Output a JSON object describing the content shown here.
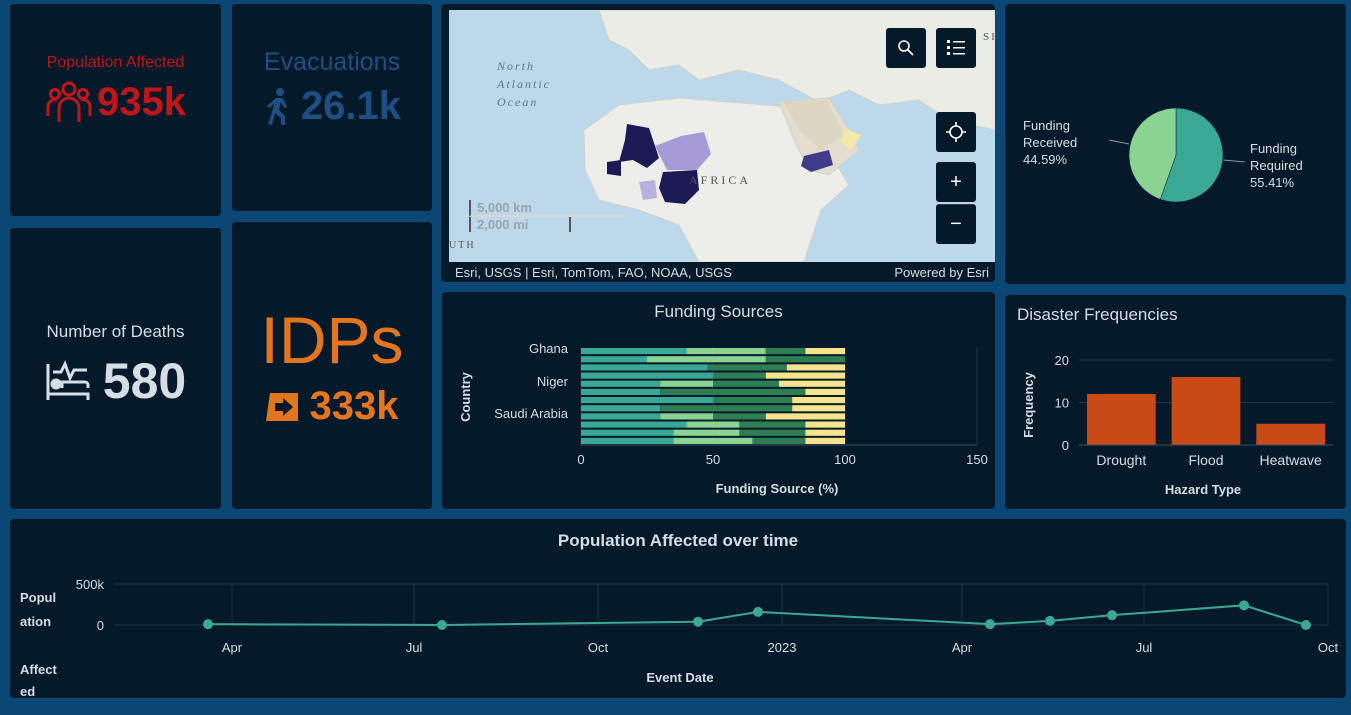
{
  "kpis": {
    "population": {
      "label": "Population Affected",
      "value": "935k",
      "icon": "people-icon",
      "color": "#c0151b"
    },
    "evacuations": {
      "label": "Evacuations",
      "value": "26.1k",
      "icon": "walking-person-icon",
      "color": "#1f4e82"
    },
    "deaths": {
      "label": "Number of Deaths",
      "value": "580",
      "icon": "bed-heartbeat-icon",
      "color": "#d6dde4"
    },
    "idps": {
      "label": "IDPs",
      "value": "333k",
      "icon": "shelter-arrow-icon",
      "color": "#e3761d"
    }
  },
  "map": {
    "labels": {
      "ocean": [
        "North",
        "Atlantic",
        "Ocean"
      ],
      "continent": "AFRICA",
      "south": "UTH",
      "corner": "SI"
    },
    "scale": {
      "km": "5,000 km",
      "mi": "2,000 mi"
    },
    "attribution": "Esri, USGS | Esri, TomTom, FAO, NOAA, USGS",
    "powered_by": "Powered by Esri",
    "buttons": {
      "search": "search-icon",
      "legend": "legend-list-icon",
      "locate": "crosshair-icon",
      "zoom_in": "+",
      "zoom_out": "−"
    }
  },
  "chart_data": [
    {
      "id": "funding_pie",
      "type": "pie",
      "slices": [
        {
          "label": "Funding Received",
          "value": 44.59,
          "display": "44.59%",
          "color": "#8bd392"
        },
        {
          "label": "Funding Required",
          "value": 55.41,
          "display": "55.41%",
          "color": "#3aa895"
        }
      ]
    },
    {
      "id": "funding_sources",
      "type": "bar",
      "orientation": "horizontal",
      "stacked": true,
      "title": "Funding Sources",
      "xlabel": "Funding Source (%)",
      "ylabel": "Country",
      "xlim": [
        0,
        150
      ],
      "xticks": [
        0,
        50,
        100,
        150
      ],
      "category_labels": [
        "Ghana",
        "Niger",
        "Saudi Arabia"
      ],
      "segment_colors": [
        "#3aa895",
        "#8bd392",
        "#2f7d52",
        "#f7e38c"
      ],
      "rows": [
        [
          40,
          30,
          15,
          15
        ],
        [
          25,
          45,
          30,
          0
        ],
        [
          48,
          0,
          30,
          22
        ],
        [
          50,
          0,
          20,
          30
        ],
        [
          30,
          20,
          25,
          25
        ],
        [
          30,
          0,
          55,
          15
        ],
        [
          50,
          0,
          30,
          20
        ],
        [
          30,
          0,
          50,
          20
        ],
        [
          30,
          20,
          20,
          30
        ],
        [
          40,
          20,
          25,
          15
        ],
        [
          35,
          25,
          25,
          15
        ],
        [
          35,
          30,
          20,
          15
        ]
      ]
    },
    {
      "id": "disaster_frequencies",
      "type": "bar",
      "title": "Disaster Frequencies",
      "xlabel": "Hazard Type",
      "ylabel": "Frequency",
      "categories": [
        "Drought",
        "Flood",
        "Heatwave"
      ],
      "values": [
        12,
        16,
        5
      ],
      "ylim": [
        0,
        20
      ],
      "yticks": [
        0,
        10,
        20
      ],
      "color": "#c94a16"
    },
    {
      "id": "population_over_time",
      "type": "line",
      "title": "Population Affected over time",
      "xlabel": "Event Date",
      "ylabel": "Population Affected",
      "ylabel_lines": [
        "Popul",
        "ation",
        "Affect",
        "ed"
      ],
      "ylim": [
        0,
        500000
      ],
      "yticks": [
        {
          "value": 0,
          "label": "0"
        },
        {
          "value": 500000,
          "label": "500k"
        }
      ],
      "xlim": [
        "2022-02-01",
        "2023-10-01"
      ],
      "xticks": [
        {
          "date": "2022-04-01",
          "label": "Apr"
        },
        {
          "date": "2022-07-01",
          "label": "Jul"
        },
        {
          "date": "2022-10-01",
          "label": "Oct"
        },
        {
          "date": "2023-01-01",
          "label": "2023"
        },
        {
          "date": "2023-04-01",
          "label": "Apr"
        },
        {
          "date": "2023-07-01",
          "label": "Jul"
        },
        {
          "date": "2023-10-01",
          "label": "Oct"
        }
      ],
      "points": [
        {
          "x": "2022-03-20",
          "y": 10000
        },
        {
          "x": "2022-07-15",
          "y": 0
        },
        {
          "x": "2022-11-20",
          "y": 40000
        },
        {
          "x": "2022-12-20",
          "y": 160000
        },
        {
          "x": "2023-04-15",
          "y": 10000
        },
        {
          "x": "2023-05-15",
          "y": 50000
        },
        {
          "x": "2023-06-15",
          "y": 120000
        },
        {
          "x": "2023-08-20",
          "y": 240000
        },
        {
          "x": "2023-09-20",
          "y": 0
        }
      ],
      "color": "#3aa895"
    }
  ]
}
